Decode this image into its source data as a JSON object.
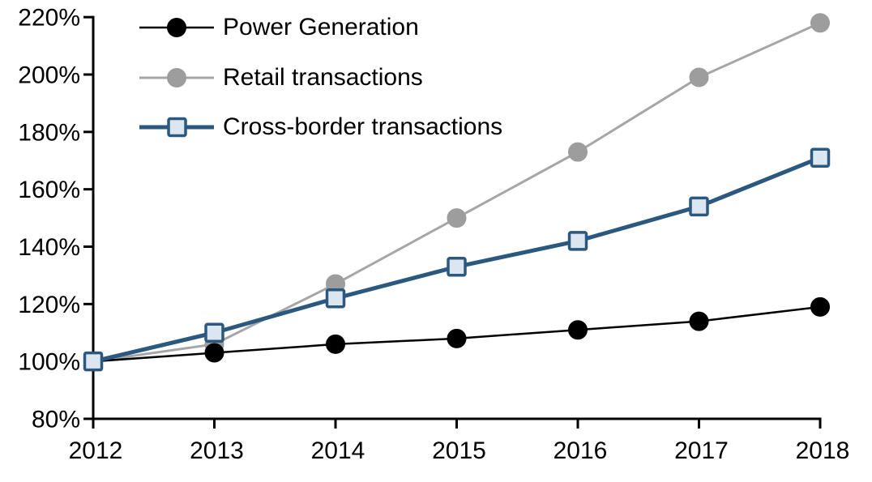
{
  "chart_data": {
    "type": "line",
    "title": "",
    "categories": [
      "2012",
      "2013",
      "2014",
      "2015",
      "2016",
      "2017",
      "2018"
    ],
    "series": [
      {
        "name": "Power Generation",
        "marker": "circle",
        "line_color": "#000000",
        "marker_fill": "#000000",
        "marker_stroke": "#000000",
        "line_width": 2.5,
        "values": [
          100,
          103,
          106,
          108,
          111,
          114,
          119
        ]
      },
      {
        "name": "Retail transactions",
        "marker": "circle",
        "line_color": "#a6a6a6",
        "marker_fill": "#9d9d9d",
        "marker_stroke": "#9d9d9d",
        "line_width": 3,
        "values": [
          100,
          106,
          127,
          150,
          173,
          199,
          218
        ]
      },
      {
        "name": "Cross-border transactions",
        "marker": "square",
        "line_color": "#2a587e",
        "marker_fill": "#dce6f1",
        "marker_stroke": "#2a587e",
        "line_width": 5,
        "values": [
          100,
          110,
          122,
          133,
          142,
          154,
          171
        ]
      }
    ],
    "x_axis": {
      "labels": [
        "2012",
        "2013",
        "2014",
        "2015",
        "2016",
        "2017",
        "2018"
      ]
    },
    "y_axis": {
      "min": 80,
      "max": 220,
      "step": 20,
      "tick_labels": [
        "80%",
        "100%",
        "120%",
        "140%",
        "160%",
        "180%",
        "200%",
        "220%"
      ]
    },
    "legend_position": "top-left",
    "grid": false,
    "axis_color": "#000000"
  }
}
